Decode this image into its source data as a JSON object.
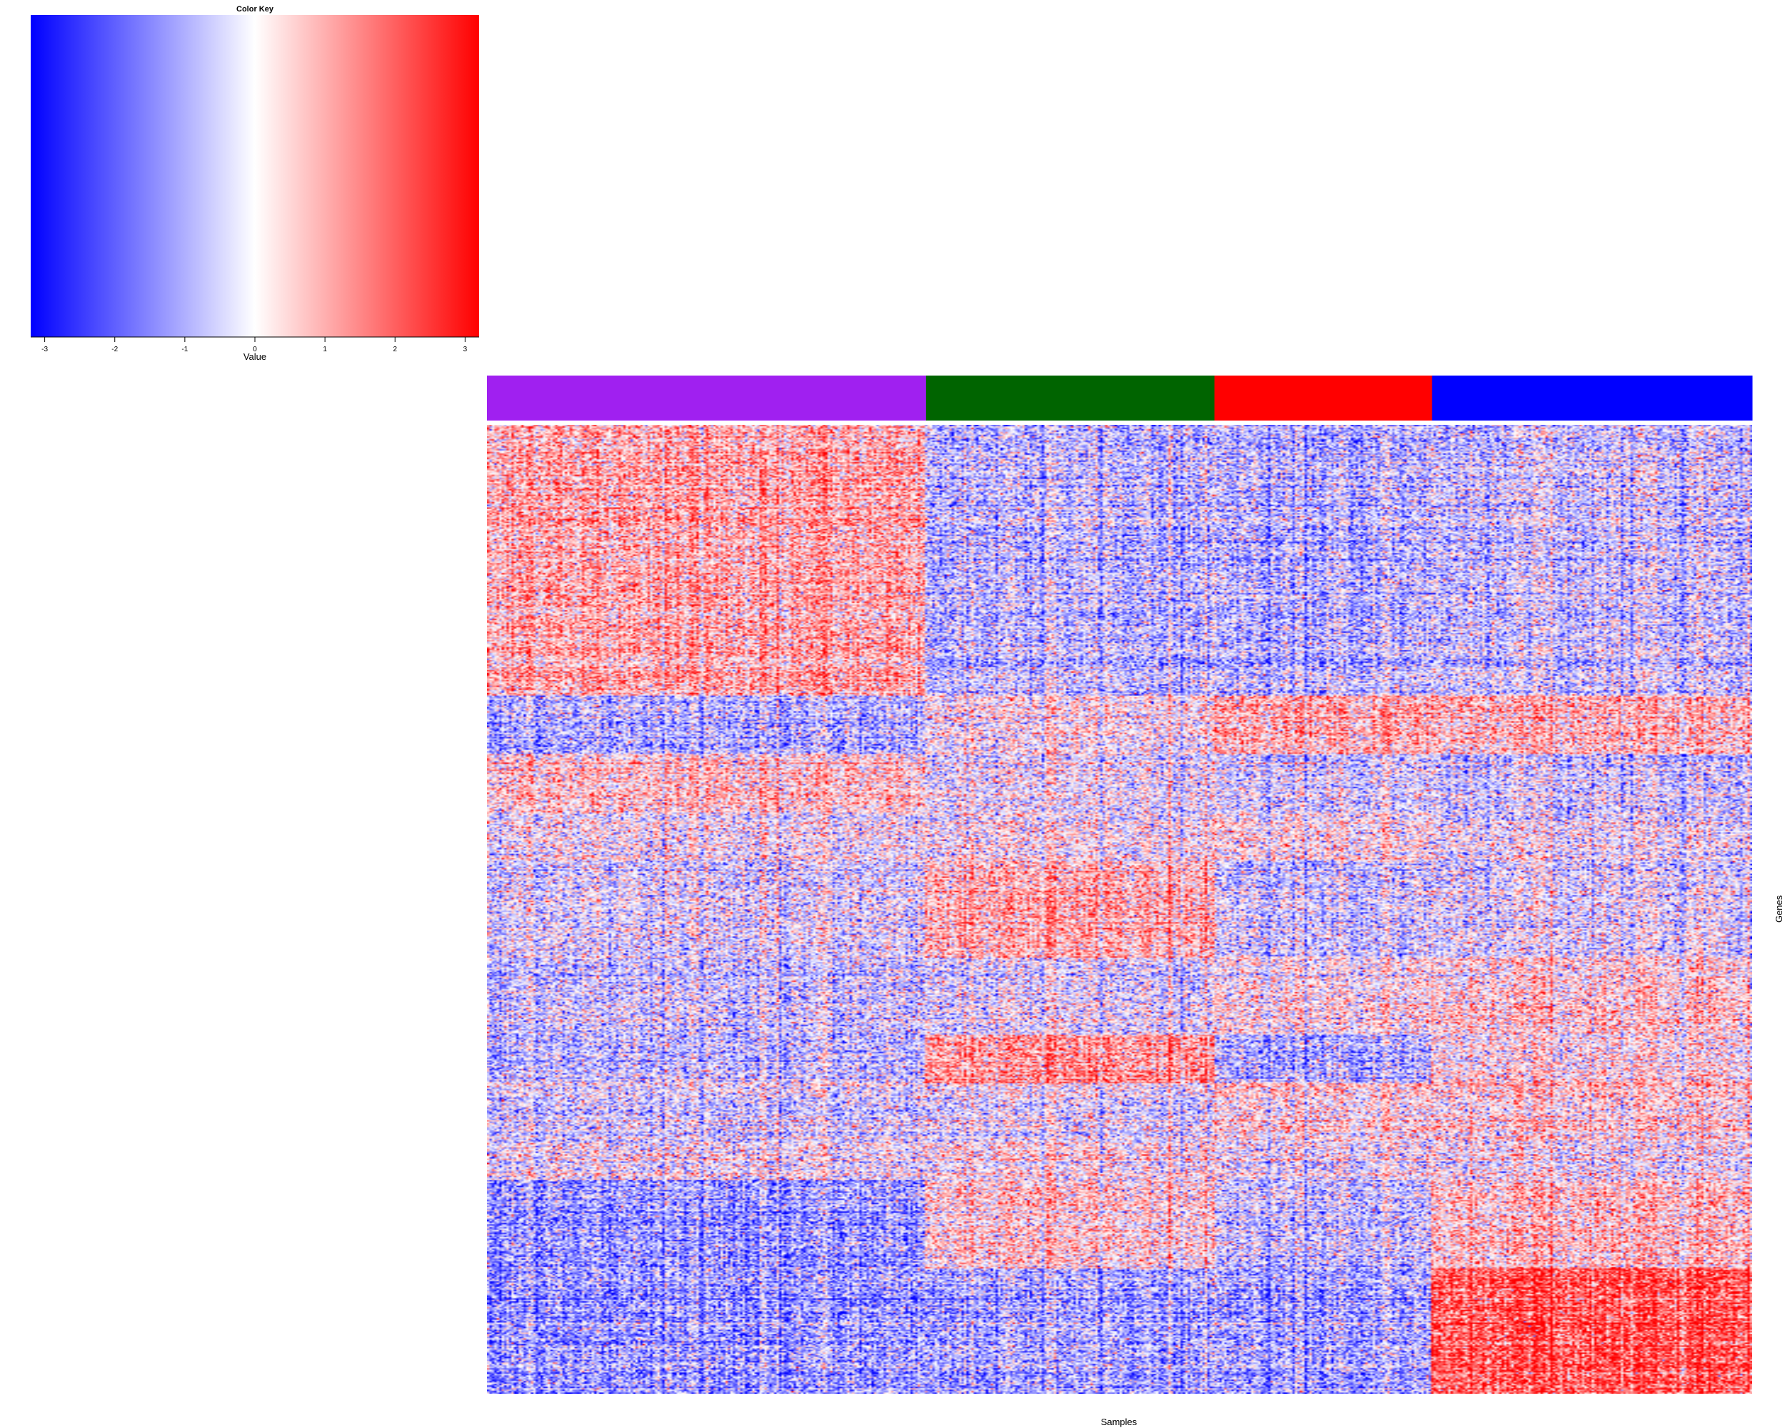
{
  "chart_data": {
    "type": "heatmap",
    "color_key": {
      "title": "Color Key",
      "xlabel": "Value",
      "range": [
        -3.2,
        3.2
      ],
      "ticks": [
        -3,
        -2,
        -1,
        0,
        1,
        2,
        3
      ],
      "tick_labels": [
        "-3",
        "-2",
        "-1",
        "0",
        "1",
        "2",
        "3"
      ],
      "colors": [
        "#0000ff",
        "#ffffff",
        "#ff0000"
      ]
    },
    "column_groups": [
      {
        "color": "#a020f0",
        "fraction": 0.347
      },
      {
        "color": "#006400",
        "fraction": 0.228
      },
      {
        "color": "#ff0000",
        "fraction": 0.172
      },
      {
        "color": "#0000ff",
        "fraction": 0.253
      }
    ],
    "row_blocks": [
      {
        "start": 0.0,
        "end": 0.28,
        "mean_by_group": [
          1.0,
          -0.7,
          -0.8,
          -0.5
        ]
      },
      {
        "start": 0.28,
        "end": 0.34,
        "mean_by_group": [
          -1.0,
          0.1,
          0.9,
          0.8
        ]
      },
      {
        "start": 0.34,
        "end": 0.4,
        "mean_by_group": [
          0.7,
          0.0,
          -0.3,
          -0.4
        ]
      },
      {
        "start": 0.4,
        "end": 0.45,
        "mean_by_group": [
          0.1,
          0.2,
          0.3,
          0.0
        ]
      },
      {
        "start": 0.45,
        "end": 0.55,
        "mean_by_group": [
          -0.4,
          0.9,
          -0.6,
          -0.3
        ]
      },
      {
        "start": 0.55,
        "end": 0.63,
        "mean_by_group": [
          -0.5,
          -0.2,
          0.3,
          0.6
        ]
      },
      {
        "start": 0.63,
        "end": 0.68,
        "mean_by_group": [
          -0.6,
          1.4,
          -0.8,
          0.4
        ]
      },
      {
        "start": 0.68,
        "end": 0.74,
        "mean_by_group": [
          -0.4,
          -0.2,
          0.4,
          0.5
        ]
      },
      {
        "start": 0.74,
        "end": 0.78,
        "mean_by_group": [
          -0.1,
          0.2,
          -0.1,
          0.0
        ]
      },
      {
        "start": 0.78,
        "end": 0.87,
        "mean_by_group": [
          -1.3,
          0.5,
          -0.6,
          0.7
        ]
      },
      {
        "start": 0.87,
        "end": 1.0,
        "mean_by_group": [
          -1.2,
          -1.0,
          -1.0,
          2.2
        ]
      }
    ],
    "xlabel": "Samples",
    "ylabel": "Genes"
  }
}
